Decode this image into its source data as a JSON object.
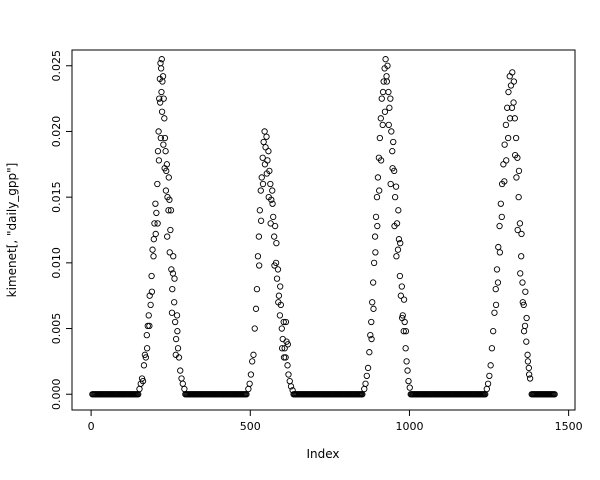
{
  "figure": {
    "background": "#ffffff",
    "point_color": "#000000"
  },
  "chart_data": {
    "type": "scatter",
    "title": "",
    "xlabel": "Index",
    "ylabel": "kimenet[, \"daily_gpp\"]",
    "marker": "open-circle",
    "grid": false,
    "legend": "none",
    "xlim": [
      -60,
      1520
    ],
    "ylim": [
      -0.0012,
      0.0262
    ],
    "x_ticks": [
      0,
      500,
      1000,
      1500
    ],
    "x_tick_labels": [
      "0",
      "500",
      "1000",
      "1500"
    ],
    "y_ticks": [
      0.0,
      0.005,
      0.01,
      0.015,
      0.02,
      0.025
    ],
    "y_tick_labels": [
      "0.000",
      "0.005",
      "0.010",
      "0.015",
      "0.020",
      "0.025"
    ],
    "baseline_y": 0.0,
    "baseline_step": 3,
    "baseline_runs": [
      [
        4,
        148
      ],
      [
        296,
        490
      ],
      [
        636,
        854
      ],
      [
        1004,
        1240
      ],
      [
        1384,
        1458
      ]
    ],
    "points": [
      [
        152,
        0.0004
      ],
      [
        156,
        0.0008
      ],
      [
        160,
        0.0012
      ],
      [
        163,
        0.001
      ],
      [
        166,
        0.0022
      ],
      [
        169,
        0.003
      ],
      [
        172,
        0.0028
      ],
      [
        175,
        0.0045
      ],
      [
        178,
        0.0052
      ],
      [
        181,
        0.006
      ],
      [
        184,
        0.0075
      ],
      [
        187,
        0.0068
      ],
      [
        190,
        0.009
      ],
      [
        193,
        0.011
      ],
      [
        196,
        0.0105
      ],
      [
        199,
        0.013
      ],
      [
        202,
        0.0145
      ],
      [
        205,
        0.0138
      ],
      [
        208,
        0.016
      ],
      [
        210,
        0.0185
      ],
      [
        212,
        0.02
      ],
      [
        214,
        0.0225
      ],
      [
        216,
        0.024
      ],
      [
        218,
        0.0252
      ],
      [
        220,
        0.0248
      ],
      [
        222,
        0.0255
      ],
      [
        224,
        0.0238
      ],
      [
        226,
        0.0242
      ],
      [
        228,
        0.0225
      ],
      [
        230,
        0.021
      ],
      [
        232,
        0.0195
      ],
      [
        234,
        0.0185
      ],
      [
        236,
        0.017
      ],
      [
        238,
        0.0175
      ],
      [
        240,
        0.015
      ],
      [
        243,
        0.014
      ],
      [
        246,
        0.0148
      ],
      [
        249,
        0.0125
      ],
      [
        252,
        0.0095
      ],
      [
        255,
        0.008
      ],
      [
        258,
        0.0105
      ],
      [
        261,
        0.007
      ],
      [
        264,
        0.0055
      ],
      [
        267,
        0.0042
      ],
      [
        270,
        0.006
      ],
      [
        273,
        0.0035
      ],
      [
        276,
        0.0028
      ],
      [
        280,
        0.0018
      ],
      [
        284,
        0.0012
      ],
      [
        288,
        0.0008
      ],
      [
        293,
        0.0004
      ],
      [
        209,
        0.013
      ],
      [
        213,
        0.0178
      ],
      [
        217,
        0.0222
      ],
      [
        221,
        0.023
      ],
      [
        219,
        0.0195
      ],
      [
        223,
        0.0215
      ],
      [
        227,
        0.019
      ],
      [
        231,
        0.0172
      ],
      [
        235,
        0.0155
      ],
      [
        239,
        0.012
      ],
      [
        244,
        0.0165
      ],
      [
        247,
        0.0108
      ],
      [
        251,
        0.014
      ],
      [
        254,
        0.0062
      ],
      [
        257,
        0.0092
      ],
      [
        262,
        0.0088
      ],
      [
        266,
        0.003
      ],
      [
        271,
        0.0048
      ],
      [
        176,
        0.0035
      ],
      [
        183,
        0.0052
      ],
      [
        191,
        0.0078
      ],
      [
        197,
        0.0118
      ],
      [
        203,
        0.0122
      ],
      [
        494,
        0.0004
      ],
      [
        498,
        0.0008
      ],
      [
        502,
        0.0015
      ],
      [
        506,
        0.0025
      ],
      [
        510,
        0.003
      ],
      [
        514,
        0.005
      ],
      [
        518,
        0.0065
      ],
      [
        521,
        0.008
      ],
      [
        524,
        0.0105
      ],
      [
        527,
        0.012
      ],
      [
        530,
        0.014
      ],
      [
        533,
        0.0155
      ],
      [
        536,
        0.0165
      ],
      [
        539,
        0.018
      ],
      [
        542,
        0.0192
      ],
      [
        545,
        0.02
      ],
      [
        548,
        0.0188
      ],
      [
        551,
        0.0196
      ],
      [
        554,
        0.0178
      ],
      [
        557,
        0.0185
      ],
      [
        560,
        0.017
      ],
      [
        563,
        0.016
      ],
      [
        566,
        0.0148
      ],
      [
        569,
        0.0155
      ],
      [
        572,
        0.0135
      ],
      [
        575,
        0.012
      ],
      [
        578,
        0.0128
      ],
      [
        581,
        0.01
      ],
      [
        584,
        0.0088
      ],
      [
        587,
        0.0095
      ],
      [
        590,
        0.0075
      ],
      [
        593,
        0.006
      ],
      [
        596,
        0.0068
      ],
      [
        599,
        0.005
      ],
      [
        602,
        0.0042
      ],
      [
        605,
        0.0055
      ],
      [
        608,
        0.0035
      ],
      [
        611,
        0.0028
      ],
      [
        614,
        0.004
      ],
      [
        617,
        0.0022
      ],
      [
        620,
        0.0015
      ],
      [
        624,
        0.001
      ],
      [
        628,
        0.0006
      ],
      [
        633,
        0.0003
      ],
      [
        528,
        0.0098
      ],
      [
        534,
        0.0132
      ],
      [
        540,
        0.016
      ],
      [
        546,
        0.0175
      ],
      [
        552,
        0.0168
      ],
      [
        558,
        0.015
      ],
      [
        564,
        0.013
      ],
      [
        570,
        0.0145
      ],
      [
        576,
        0.0098
      ],
      [
        582,
        0.0115
      ],
      [
        588,
        0.007
      ],
      [
        594,
        0.0082
      ],
      [
        600,
        0.0035
      ],
      [
        606,
        0.0028
      ],
      [
        612,
        0.0055
      ],
      [
        618,
        0.0038
      ],
      [
        858,
        0.0004
      ],
      [
        862,
        0.0008
      ],
      [
        866,
        0.0014
      ],
      [
        870,
        0.002
      ],
      [
        874,
        0.0032
      ],
      [
        877,
        0.0045
      ],
      [
        880,
        0.0055
      ],
      [
        883,
        0.007
      ],
      [
        886,
        0.0085
      ],
      [
        889,
        0.01
      ],
      [
        892,
        0.012
      ],
      [
        895,
        0.0135
      ],
      [
        898,
        0.015
      ],
      [
        901,
        0.0165
      ],
      [
        904,
        0.018
      ],
      [
        907,
        0.0195
      ],
      [
        910,
        0.021
      ],
      [
        913,
        0.0225
      ],
      [
        916,
        0.0205
      ],
      [
        919,
        0.0238
      ],
      [
        922,
        0.0248
      ],
      [
        925,
        0.0255
      ],
      [
        928,
        0.0242
      ],
      [
        931,
        0.025
      ],
      [
        934,
        0.023
      ],
      [
        937,
        0.0218
      ],
      [
        940,
        0.0225
      ],
      [
        943,
        0.02
      ],
      [
        946,
        0.0185
      ],
      [
        949,
        0.0192
      ],
      [
        952,
        0.017
      ],
      [
        955,
        0.015
      ],
      [
        958,
        0.0158
      ],
      [
        961,
        0.013
      ],
      [
        964,
        0.011
      ],
      [
        967,
        0.0118
      ],
      [
        970,
        0.009
      ],
      [
        973,
        0.0075
      ],
      [
        976,
        0.0082
      ],
      [
        979,
        0.006
      ],
      [
        982,
        0.0048
      ],
      [
        985,
        0.0055
      ],
      [
        988,
        0.0035
      ],
      [
        991,
        0.0025
      ],
      [
        994,
        0.0018
      ],
      [
        997,
        0.001
      ],
      [
        1001,
        0.0005
      ],
      [
        905,
        0.0155
      ],
      [
        911,
        0.0178
      ],
      [
        917,
        0.023
      ],
      [
        923,
        0.0215
      ],
      [
        929,
        0.0238
      ],
      [
        935,
        0.0205
      ],
      [
        941,
        0.016
      ],
      [
        947,
        0.0172
      ],
      [
        953,
        0.0128
      ],
      [
        959,
        0.0105
      ],
      [
        965,
        0.014
      ],
      [
        971,
        0.0115
      ],
      [
        977,
        0.0058
      ],
      [
        983,
        0.0072
      ],
      [
        989,
        0.0048
      ],
      [
        899,
        0.0128
      ],
      [
        893,
        0.0108
      ],
      [
        887,
        0.0065
      ],
      [
        881,
        0.0042
      ],
      [
        1243,
        0.0004
      ],
      [
        1247,
        0.0008
      ],
      [
        1251,
        0.0014
      ],
      [
        1255,
        0.0022
      ],
      [
        1259,
        0.0035
      ],
      [
        1263,
        0.0048
      ],
      [
        1267,
        0.0062
      ],
      [
        1271,
        0.008
      ],
      [
        1275,
        0.0095
      ],
      [
        1279,
        0.0112
      ],
      [
        1283,
        0.0128
      ],
      [
        1287,
        0.0145
      ],
      [
        1291,
        0.016
      ],
      [
        1295,
        0.0175
      ],
      [
        1299,
        0.019
      ],
      [
        1303,
        0.0205
      ],
      [
        1307,
        0.0218
      ],
      [
        1311,
        0.023
      ],
      [
        1315,
        0.0242
      ],
      [
        1319,
        0.0235
      ],
      [
        1323,
        0.0245
      ],
      [
        1327,
        0.0222
      ],
      [
        1331,
        0.021
      ],
      [
        1335,
        0.0195
      ],
      [
        1339,
        0.018
      ],
      [
        1343,
        0.015
      ],
      [
        1347,
        0.013
      ],
      [
        1351,
        0.0105
      ],
      [
        1355,
        0.0085
      ],
      [
        1359,
        0.0068
      ],
      [
        1363,
        0.0052
      ],
      [
        1367,
        0.004
      ],
      [
        1371,
        0.003
      ],
      [
        1375,
        0.002
      ],
      [
        1379,
        0.0012
      ],
      [
        1298,
        0.0162
      ],
      [
        1304,
        0.0178
      ],
      [
        1310,
        0.0195
      ],
      [
        1316,
        0.021
      ],
      [
        1322,
        0.0218
      ],
      [
        1328,
        0.0238
      ],
      [
        1332,
        0.0182
      ],
      [
        1336,
        0.0165
      ],
      [
        1340,
        0.0125
      ],
      [
        1344,
        0.017
      ],
      [
        1348,
        0.0092
      ],
      [
        1352,
        0.0122
      ],
      [
        1356,
        0.007
      ],
      [
        1360,
        0.0048
      ],
      [
        1364,
        0.0078
      ],
      [
        1368,
        0.0058
      ],
      [
        1372,
        0.0025
      ],
      [
        1376,
        0.0015
      ],
      [
        1290,
        0.0135
      ],
      [
        1284,
        0.0108
      ],
      [
        1278,
        0.0085
      ],
      [
        1272,
        0.0068
      ]
    ]
  }
}
